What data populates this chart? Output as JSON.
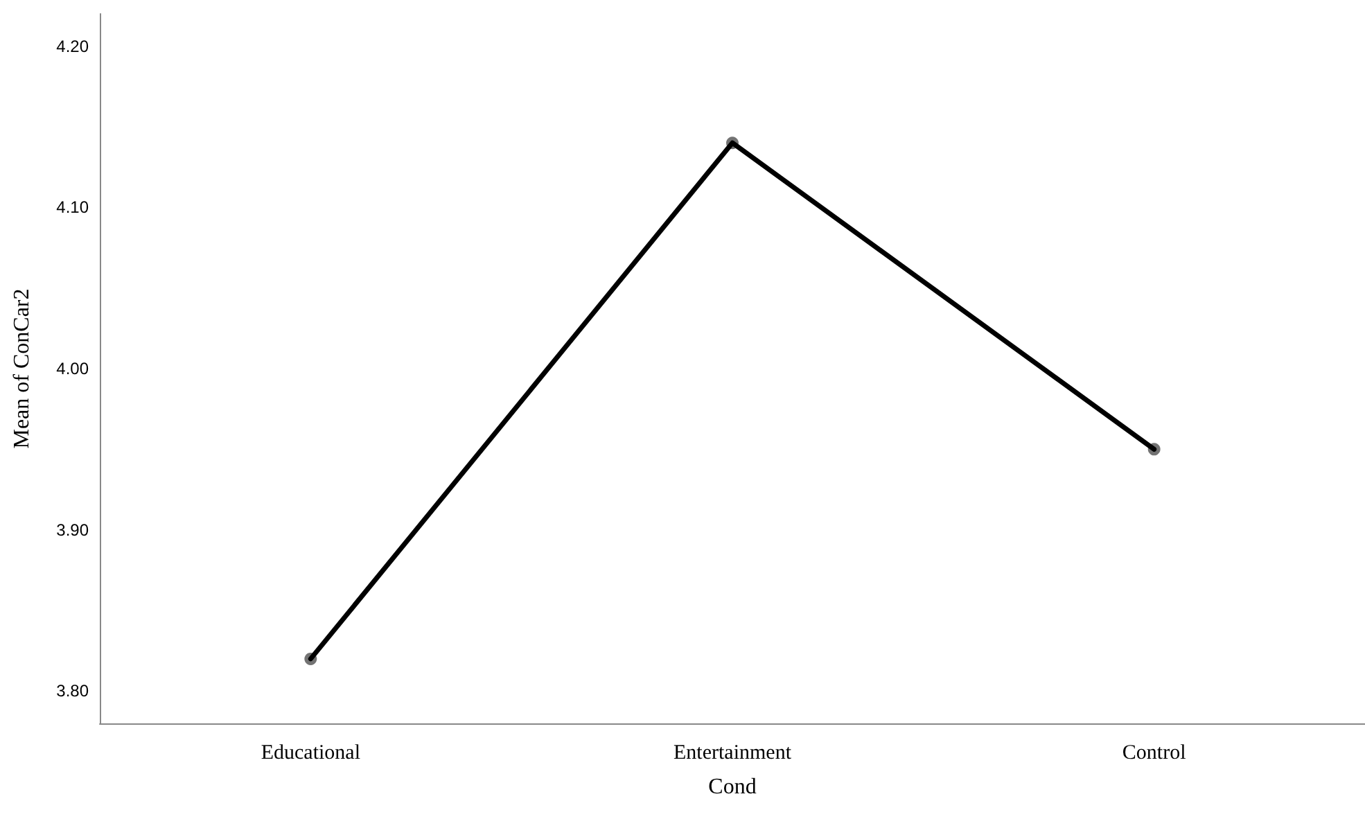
{
  "chart_data": {
    "type": "line",
    "xlabel": "Cond",
    "ylabel": "Mean of ConCar2",
    "categories": [
      "Educational",
      "Entertainment",
      "Control"
    ],
    "series": [
      {
        "color": "#000000",
        "values": [
          3.82,
          4.14,
          3.95
        ]
      }
    ],
    "ylim": [
      3.78,
      4.22
    ],
    "yticks": [
      {
        "value": 3.8,
        "label": "3.80"
      },
      {
        "value": 3.9,
        "label": "3.90"
      },
      {
        "value": 4.0,
        "label": "4.00"
      },
      {
        "value": 4.1,
        "label": "4.10"
      },
      {
        "value": 4.2,
        "label": "4.20"
      }
    ],
    "grid": false,
    "marker": "circle",
    "line_style": "solid"
  }
}
